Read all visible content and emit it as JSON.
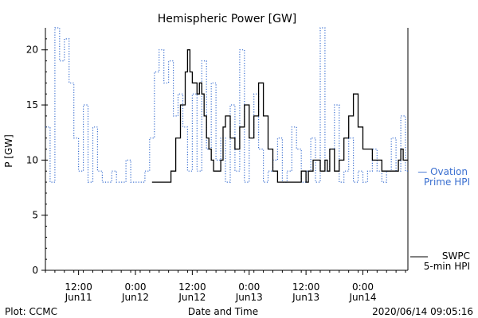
{
  "chart_data": {
    "type": "line",
    "title": "Hemispheric Power [GW]",
    "ylabel": "P [GW]",
    "xlabel": "Date and Time",
    "ylim": [
      0,
      22
    ],
    "y_ticks": [
      0,
      5,
      10,
      15,
      20
    ],
    "x_ticks": [
      {
        "t": "Jun11 12:00",
        "time": "12:00",
        "date": "Jun11"
      },
      {
        "t": "Jun12 00:00",
        "time": "0:00",
        "date": "Jun12"
      },
      {
        "t": "Jun12 12:00",
        "time": "12:00",
        "date": "Jun12"
      },
      {
        "t": "Jun13 00:00",
        "time": "0:00",
        "date": "Jun13"
      },
      {
        "t": "Jun13 12:00",
        "time": "12:00",
        "date": "Jun13"
      },
      {
        "t": "Jun14 00:00",
        "time": "0:00",
        "date": "Jun14"
      }
    ],
    "xlim": [
      "Jun11 05:00",
      "Jun14 09:30"
    ],
    "series": [
      {
        "name": "SWPC 5-min HPI",
        "color": "#000000",
        "style": "solid",
        "x": [
          "Jun12 03:30",
          "Jun12 04:30",
          "Jun12 05:30",
          "Jun12 06:30",
          "Jun12 07:30",
          "Jun12 08:30",
          "Jun12 09:30",
          "Jun12 10:30",
          "Jun12 11:00",
          "Jun12 11:30",
          "Jun12 12:00",
          "Jun12 13:00",
          "Jun12 13:30",
          "Jun12 14:00",
          "Jun12 14:30",
          "Jun12 15:00",
          "Jun12 15:30",
          "Jun12 16:00",
          "Jun12 16:30",
          "Jun12 17:00",
          "Jun12 18:00",
          "Jun12 18:30",
          "Jun12 19:00",
          "Jun12 20:00",
          "Jun12 21:00",
          "Jun12 22:00",
          "Jun12 23:00",
          "Jun13 00:00",
          "Jun13 01:00",
          "Jun13 02:00",
          "Jun13 03:00",
          "Jun13 04:00",
          "Jun13 05:00",
          "Jun13 06:00",
          "Jun13 06:30",
          "Jun13 07:00",
          "Jun13 08:00",
          "Jun13 09:00",
          "Jun13 10:00",
          "Jun13 11:00",
          "Jun13 12:00",
          "Jun13 12:30",
          "Jun13 13:00",
          "Jun13 13:30",
          "Jun13 14:00",
          "Jun13 15:00",
          "Jun13 16:00",
          "Jun13 16:30",
          "Jun13 17:00",
          "Jun13 18:00",
          "Jun13 19:00",
          "Jun13 20:00",
          "Jun13 21:00",
          "Jun13 22:00",
          "Jun13 23:00",
          "Jun14 00:00",
          "Jun14 02:00",
          "Jun14 04:00",
          "Jun14 06:00",
          "Jun14 07:00",
          "Jun14 07:30",
          "Jun14 08:00",
          "Jun14 08:30",
          "Jun14 09:00",
          "Jun14 09:30"
        ],
        "values": [
          8,
          8,
          8,
          8,
          9,
          12,
          15,
          18,
          20,
          18,
          17,
          16,
          17,
          16,
          14,
          12,
          11,
          10,
          9,
          9,
          10,
          13,
          14,
          12,
          11,
          13,
          15,
          12,
          14,
          17,
          14,
          11,
          9,
          8,
          8,
          8,
          8,
          8,
          8,
          9,
          8,
          9,
          9,
          10,
          10,
          9,
          10,
          9,
          11,
          9,
          10,
          12,
          14,
          16,
          13,
          11,
          10,
          9,
          9,
          9,
          10,
          11,
          10,
          10,
          10
        ]
      },
      {
        "name": "Ovation Prime HPI",
        "color": "#3a6fd0",
        "style": "dotted",
        "x": [
          "Jun11 05:00",
          "Jun11 06:00",
          "Jun11 07:00",
          "Jun11 08:00",
          "Jun11 09:00",
          "Jun11 10:00",
          "Jun11 11:00",
          "Jun11 12:00",
          "Jun11 13:00",
          "Jun11 14:00",
          "Jun11 15:00",
          "Jun11 16:00",
          "Jun11 17:00",
          "Jun11 18:00",
          "Jun11 19:00",
          "Jun11 20:00",
          "Jun11 21:00",
          "Jun11 22:00",
          "Jun11 23:00",
          "Jun12 00:00",
          "Jun12 01:00",
          "Jun12 02:00",
          "Jun12 03:00",
          "Jun12 04:00",
          "Jun12 05:00",
          "Jun12 06:00",
          "Jun12 07:00",
          "Jun12 08:00",
          "Jun12 09:00",
          "Jun12 10:00",
          "Jun12 11:00",
          "Jun12 12:00",
          "Jun12 13:00",
          "Jun12 14:00",
          "Jun12 15:00",
          "Jun12 16:00",
          "Jun12 17:00",
          "Jun12 18:00",
          "Jun12 19:00",
          "Jun12 20:00",
          "Jun12 21:00",
          "Jun12 22:00",
          "Jun12 23:00",
          "Jun13 00:00",
          "Jun13 01:00",
          "Jun13 02:00",
          "Jun13 03:00",
          "Jun13 04:00",
          "Jun13 05:00",
          "Jun13 06:00",
          "Jun13 07:00",
          "Jun13 08:00",
          "Jun13 09:00",
          "Jun13 10:00",
          "Jun13 11:00",
          "Jun13 12:00",
          "Jun13 13:00",
          "Jun13 14:00",
          "Jun13 15:00",
          "Jun13 16:00",
          "Jun13 17:00",
          "Jun13 18:00",
          "Jun13 19:00",
          "Jun13 20:00",
          "Jun13 21:00",
          "Jun13 22:00",
          "Jun13 23:00",
          "Jun14 00:00",
          "Jun14 01:00",
          "Jun14 02:00",
          "Jun14 03:00",
          "Jun14 04:00",
          "Jun14 05:00",
          "Jun14 06:00",
          "Jun14 07:00",
          "Jun14 08:00",
          "Jun14 09:00",
          "Jun14 09:30"
        ],
        "values": [
          13,
          8,
          22,
          19,
          21,
          17,
          12,
          9,
          15,
          8,
          13,
          9,
          8,
          8,
          9,
          8,
          8,
          10,
          8,
          8,
          8,
          9,
          12,
          18,
          20,
          17,
          19,
          14,
          16,
          13,
          9,
          16,
          9,
          19,
          11,
          17,
          10,
          12,
          8,
          15,
          9,
          20,
          8,
          12,
          16,
          11,
          8,
          9,
          10,
          12,
          8,
          9,
          13,
          11,
          8,
          9,
          12,
          8,
          22,
          9,
          11,
          15,
          8,
          9,
          12,
          8,
          9,
          8,
          9,
          11,
          9,
          8,
          9,
          12,
          9,
          14,
          9,
          9
        ]
      }
    ],
    "legend": [
      {
        "label_lines": [
          "— Ovation",
          "Prime HPI"
        ],
        "color": "#3a6fd0"
      },
      {
        "label_lines": [
          "SWPC",
          "5-min HPI"
        ],
        "color": "#000000"
      }
    ]
  },
  "footer": {
    "left": "Plot: CCMC",
    "center": "Date and Time",
    "right": "2020/06/14 09:05:16"
  }
}
